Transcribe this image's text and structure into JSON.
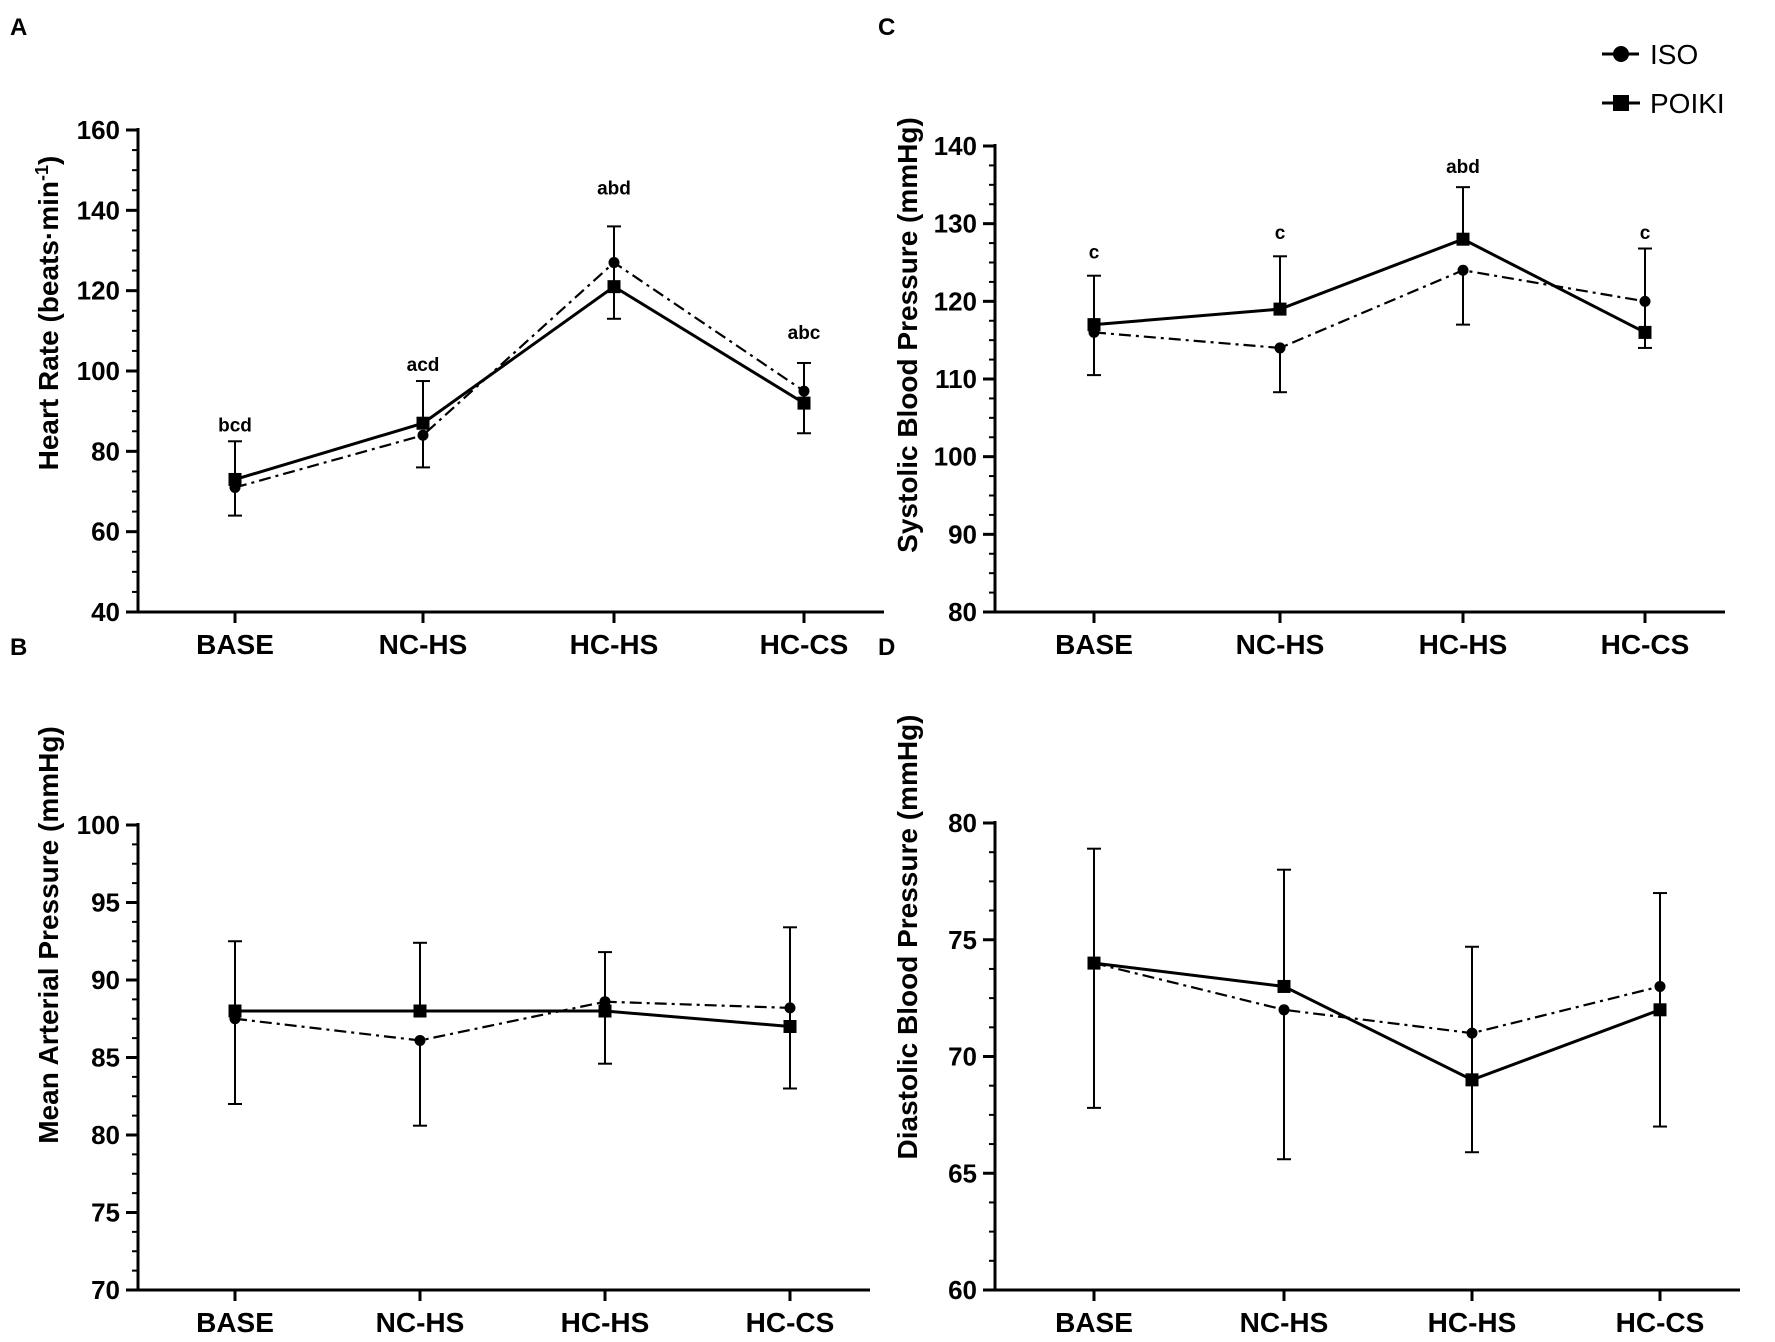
{
  "chart_data": [
    {
      "panel": "A",
      "type": "line",
      "ylabel": "Heart Rate (beats·min",
      "ylabel_sup": "-1",
      "ylabel_close": ")",
      "ylim": [
        40,
        160
      ],
      "yticks": [
        40,
        60,
        80,
        100,
        120,
        140,
        160
      ],
      "categories": [
        "BASE",
        "NC-HS",
        "HC-HS",
        "HC-CS"
      ],
      "series": [
        {
          "name": "ISO",
          "values": [
            71,
            84,
            127,
            95
          ],
          "err": [
            7,
            8,
            14,
            10.5
          ]
        },
        {
          "name": "POIKI",
          "values": [
            73,
            87,
            121,
            92
          ],
          "err": [
            9.5,
            10.5,
            15,
            10
          ]
        }
      ],
      "annotations": [
        "bcd",
        "acd",
        "abd",
        "abc"
      ],
      "annotation_y": [
        85,
        100,
        144,
        108
      ]
    },
    {
      "panel": "B",
      "type": "line",
      "ylabel": "Mean Arterial Pressure (mmHg)",
      "ylim": [
        70,
        100
      ],
      "yticks": [
        70,
        75,
        80,
        85,
        90,
        95,
        100
      ],
      "categories": [
        "BASE",
        "NC-HS",
        "HC-HS",
        "HC-CS"
      ],
      "series": [
        {
          "name": "ISO",
          "values": [
            87.5,
            86.1,
            88.6,
            88.2
          ],
          "err": [
            5.5,
            5.5,
            4,
            5.2
          ]
        },
        {
          "name": "POIKI",
          "values": [
            88,
            88,
            88,
            87
          ],
          "err": [
            4.5,
            4.4,
            3.8,
            6.4
          ]
        }
      ],
      "annotations": [
        "",
        "",
        "",
        ""
      ],
      "annotation_y": [
        null,
        null,
        null,
        null
      ]
    },
    {
      "panel": "C",
      "type": "line",
      "ylabel": "Systolic Blood Pressure (mmHg)",
      "ylim": [
        80,
        140
      ],
      "yticks": [
        80,
        90,
        100,
        110,
        120,
        130,
        140
      ],
      "categories": [
        "BASE",
        "NC-HS",
        "HC-HS",
        "HC-CS"
      ],
      "series": [
        {
          "name": "ISO",
          "values": [
            116,
            114,
            124,
            120
          ],
          "err": [
            5.5,
            5.7,
            7,
            6
          ]
        },
        {
          "name": "POIKI",
          "values": [
            117,
            119,
            128,
            116
          ],
          "err": [
            6.3,
            6.8,
            6.7,
            10.8
          ]
        }
      ],
      "annotations": [
        "c",
        "c",
        "abd",
        "c"
      ],
      "annotation_y": [
        125.5,
        128,
        136.5,
        128
      ]
    },
    {
      "panel": "D",
      "type": "line",
      "ylabel": "Diastolic Blood Pressure (mmHg)",
      "ylim": [
        60,
        80
      ],
      "yticks": [
        60,
        65,
        70,
        75,
        80
      ],
      "categories": [
        "BASE",
        "NC-HS",
        "HC-HS",
        "HC-CS"
      ],
      "series": [
        {
          "name": "ISO",
          "values": [
            74,
            72,
            71,
            73
          ],
          "err": [
            6.2,
            6.4,
            5.1,
            6
          ]
        },
        {
          "name": "POIKI",
          "values": [
            74,
            73,
            69,
            72
          ],
          "err": [
            4.9,
            5,
            5.7,
            5
          ]
        }
      ],
      "annotations": [
        "",
        "",
        "",
        ""
      ],
      "annotation_y": [
        null,
        null,
        null,
        null
      ]
    }
  ],
  "legend": [
    {
      "name": "ISO",
      "marker": "circle",
      "line": "dash-dot"
    },
    {
      "name": "POIKI",
      "marker": "square",
      "line": "solid"
    }
  ]
}
